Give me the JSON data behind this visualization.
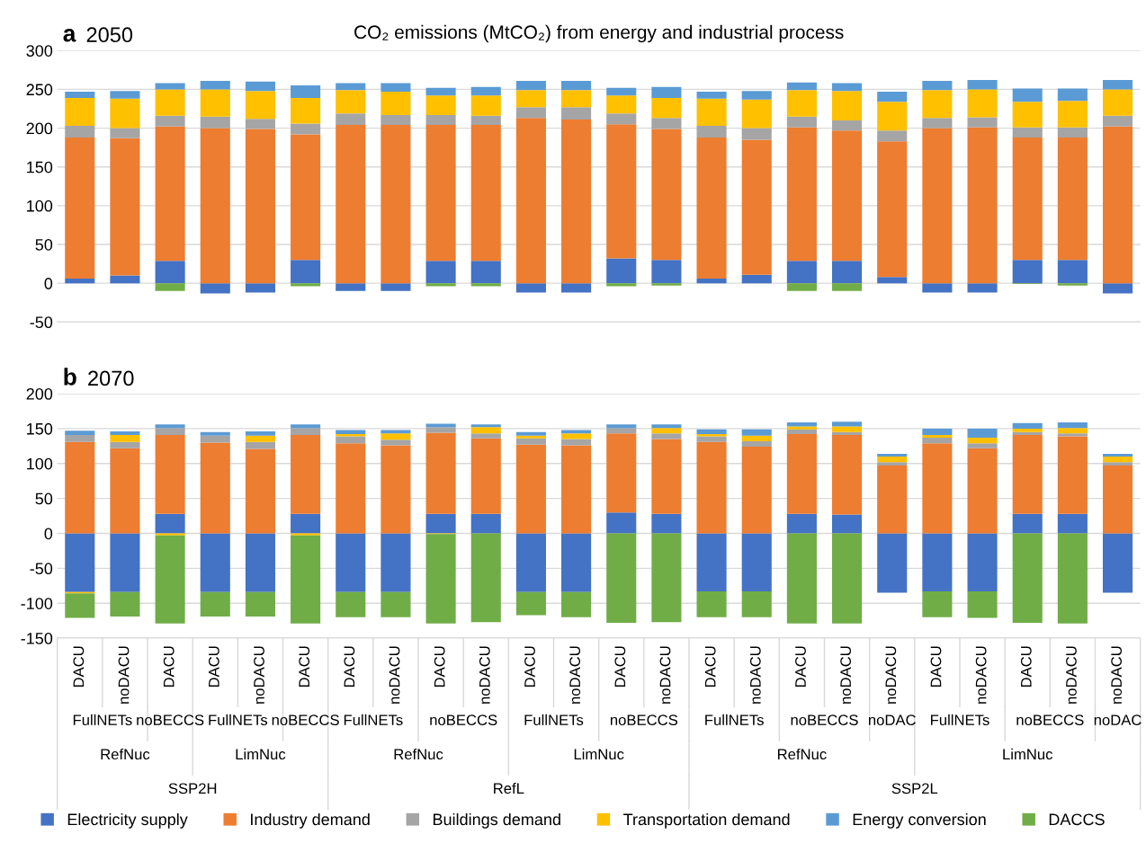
{
  "chart_data": [
    {
      "type": "bar",
      "stacked": true,
      "title": "a",
      "subtitle": "2050",
      "annotations": [
        "CO₂ emissions (MtCO₂) from energy and industrial process"
      ],
      "categories": [
        "DACU",
        "noDACU",
        "DACU",
        "DACU",
        "noDACU",
        "DACU",
        "DACU",
        "noDACU",
        "DACU",
        "noDACU",
        "DACU",
        "noDACU",
        "DACU",
        "noDACU",
        "DACU",
        "noDACU",
        "DACU",
        "noDACU",
        "noDACU",
        "DACU",
        "noDACU",
        "DACU",
        "noDACU",
        "noDACU"
      ],
      "series": [
        {
          "name": "Electricity supply",
          "color": "#4472c4",
          "values": [
            6,
            10,
            29,
            -13,
            -12,
            30,
            -10,
            -10,
            29,
            29,
            -12,
            -12,
            32,
            30,
            6,
            11,
            29,
            29,
            8,
            -12,
            -12,
            30,
            30,
            -13
          ]
        },
        {
          "name": "Industry demand",
          "color": "#ed7d31",
          "values": [
            182,
            177,
            173,
            200,
            199,
            162,
            204,
            204,
            175,
            175,
            213,
            211,
            173,
            169,
            182,
            174,
            172,
            168,
            175,
            200,
            201,
            158,
            158,
            202
          ]
        },
        {
          "name": "Buildings demand",
          "color": "#a5a5a5",
          "values": [
            15,
            13,
            14,
            15,
            13,
            14,
            15,
            13,
            13,
            12,
            14,
            16,
            14,
            14,
            15,
            15,
            14,
            13,
            14,
            13,
            13,
            13,
            13,
            14
          ]
        },
        {
          "name": "Transportation demand",
          "color": "#ffc000",
          "values": [
            36,
            38,
            34,
            35,
            36,
            33,
            30,
            30,
            25,
            26,
            22,
            22,
            23,
            26,
            35,
            37,
            34,
            38,
            37,
            36,
            36,
            33,
            34,
            34
          ]
        },
        {
          "name": "Energy conversion",
          "color": "#5b9bd5",
          "values": [
            8,
            10,
            8,
            11,
            12,
            16,
            9,
            11,
            10,
            11,
            12,
            12,
            10,
            14,
            9,
            11,
            10,
            10,
            13,
            12,
            12,
            17,
            16,
            12
          ]
        },
        {
          "name": "DACCS",
          "color": "#70ad47",
          "values": [
            0,
            0,
            -10,
            0,
            0,
            -4,
            0,
            0,
            -4,
            -4,
            0,
            0,
            -4,
            -3,
            0,
            0,
            -10,
            -10,
            0,
            0,
            0,
            -1,
            -3,
            0
          ]
        }
      ],
      "ylim": [
        -50,
        300
      ],
      "yticks": [
        -50,
        0,
        50,
        100,
        150,
        200,
        250,
        300
      ],
      "grid": "y",
      "tick_labels": "y",
      "legend": "bottom"
    },
    {
      "type": "bar",
      "stacked": true,
      "title": "b",
      "subtitle": "2070",
      "categories": [
        "DACU",
        "noDACU",
        "DACU",
        "DACU",
        "noDACU",
        "DACU",
        "DACU",
        "noDACU",
        "DACU",
        "noDACU",
        "DACU",
        "noDACU",
        "DACU",
        "noDACU",
        "DACU",
        "noDACU",
        "DACU",
        "noDACU",
        "noDACU",
        "DACU",
        "noDACU",
        "DACU",
        "noDACU",
        "noDACU"
      ],
      "annotations": [
        "FullNETs",
        "noBECCS",
        "FullNETs",
        "noBECCS",
        "FullNETs",
        "noBECCS",
        "FullNETs",
        "noBECCS",
        "FullNETs",
        "noBECCS",
        "noDAC",
        "FullNETs",
        "noBECCS",
        "noDAC",
        "RefNuc",
        "LimNuc",
        "RefNuc",
        "LimNuc",
        "RefNuc",
        "LimNuc",
        "SSP2H",
        "RefL",
        "SSP2L"
      ],
      "series": [
        {
          "name": "Electricity supply",
          "color": "#4472c4",
          "values": [
            -84,
            -84,
            28,
            -84,
            -84,
            28,
            -84,
            -84,
            28,
            28,
            -84,
            -84,
            30,
            28,
            -83,
            -83,
            28,
            27,
            -85,
            -83,
            -83,
            28,
            28,
            -85
          ]
        },
        {
          "name": "Industry demand",
          "color": "#ed7d31",
          "values": [
            131,
            122,
            113,
            130,
            121,
            113,
            129,
            126,
            116,
            108,
            127,
            126,
            113,
            107,
            131,
            124,
            114,
            114,
            97,
            129,
            122,
            113,
            111,
            97
          ]
        },
        {
          "name": "Buildings demand",
          "color": "#a5a5a5",
          "values": [
            10,
            9,
            10,
            10,
            10,
            10,
            10,
            8,
            8,
            7,
            9,
            9,
            8,
            8,
            8,
            8,
            7,
            4,
            5,
            8,
            7,
            4,
            4,
            5
          ]
        },
        {
          "name": "Transportation demand",
          "color": "#ffc000",
          "values": [
            -2,
            10,
            -3,
            0,
            9,
            -3,
            3,
            9,
            -1,
            9,
            4,
            8,
            0,
            8,
            3,
            8,
            4,
            8,
            8,
            4,
            8,
            5,
            8,
            8
          ]
        },
        {
          "name": "Energy conversion",
          "color": "#5b9bd5",
          "values": [
            6,
            5,
            5,
            5,
            6,
            5,
            6,
            5,
            5,
            4,
            5,
            5,
            5,
            5,
            7,
            9,
            6,
            7,
            4,
            9,
            13,
            8,
            8,
            4
          ]
        },
        {
          "name": "DACCS",
          "color": "#70ad47",
          "values": [
            -35,
            -35,
            -126,
            -35,
            -35,
            -126,
            -36,
            -36,
            -128,
            -127,
            -33,
            -36,
            -128,
            -127,
            -37,
            -37,
            -129,
            -129,
            0,
            -37,
            -38,
            -128,
            -129,
            0
          ]
        }
      ],
      "ylim": [
        -150,
        200
      ],
      "yticks": [
        -150,
        -100,
        -50,
        0,
        50,
        100,
        150,
        200
      ],
      "grid": "y",
      "legend": "bottom"
    }
  ]
}
